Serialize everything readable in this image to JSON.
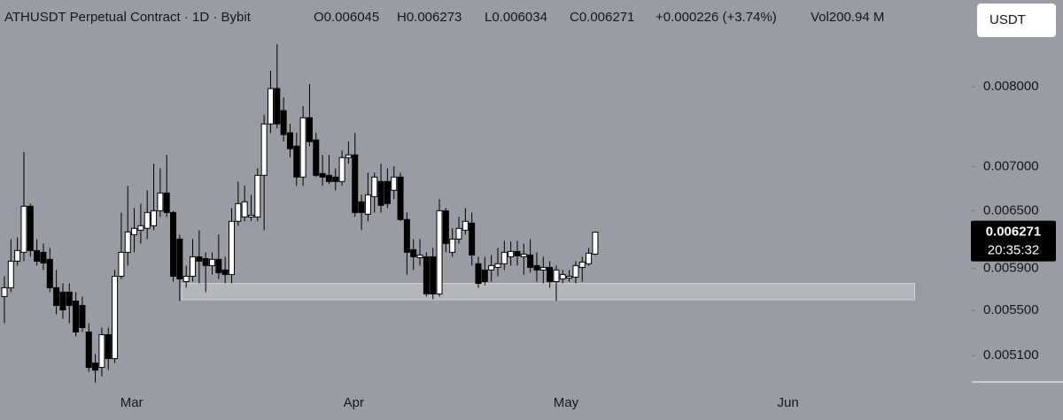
{
  "chart_data": {
    "type": "candlestick",
    "title": "ATHUSDT Perpetual Contract · 1D · Bybit",
    "ohlc_info": [
      "O0.006045",
      "H0.006273",
      "L0.006034",
      "C0.006271",
      "+0.000226 (+3.74%)",
      "Vol200.94 M"
    ],
    "currency": "USDT",
    "price_label": "0.006271",
    "countdown": "20:35:32",
    "log_scale": true,
    "up_color": "#ffffff",
    "down_color": "#000000",
    "background": "#9a9ca3",
    "ylim": [
      0.00488,
      0.00925
    ],
    "yticks": [
      {
        "value": 0.008,
        "label": "0.008000"
      },
      {
        "value": 0.007,
        "label": "0.007000"
      },
      {
        "value": 0.0065,
        "label": "0.006500"
      },
      {
        "value": 0.0059,
        "label": "0.005900"
      },
      {
        "value": 0.0055,
        "label": "0.005500"
      },
      {
        "value": 0.0051,
        "label": "0.005100"
      }
    ],
    "xlim": [
      -0.68,
      149
    ],
    "xticks": [
      {
        "value": 19.6,
        "label": "Mar"
      },
      {
        "value": 53.8,
        "label": "Apr"
      },
      {
        "value": 86.5,
        "label": "May"
      },
      {
        "value": 120.7,
        "label": "Jun"
      }
    ],
    "zone": {
      "low": 0.0056,
      "high": 0.005755,
      "x0": 27.3,
      "x1": 140.2
    },
    "open": [
      0.00563,
      0.005714,
      0.005974,
      0.006063,
      0.006549,
      0.006081,
      0.006063,
      0.005992,
      0.005714,
      0.005672,
      0.005672,
      0.005588,
      0.005547,
      0.005306,
      0.005037,
      0.005,
      0.005282,
      0.005075,
      0.005825,
      0.006063,
      0.006245,
      0.006292,
      0.006311,
      0.006339,
      0.0065,
      0.006696,
      0.006481,
      0.006199,
      0.005773,
      0.005825,
      0.006018,
      0.006,
      0.00593,
      0.005992,
      0.005886,
      0.005842,
      0.006386,
      0.006433,
      0.006433,
      0.006433,
      0.006897,
      0.007517,
      0.007976,
      0.007686,
      0.007406,
      0.007243,
      0.006877,
      0.007595,
      0.007318,
      0.006918,
      0.006897,
      0.006877,
      0.006826,
      0.007105,
      0.007137,
      0.006598,
      0.006462,
      0.006656,
      0.006826,
      0.006826,
      0.006726,
      0.006877,
      0.006405,
      0.00609,
      0.006009,
      0.006018,
      0.006018,
      0.005655,
      0.0065,
      0.006063,
      0.006199,
      0.006292,
      0.006367,
      0.005948,
      0.005886,
      0.005886,
      0.005912,
      0.005948,
      0.006018,
      0.006072,
      0.006018,
      0.006036,
      0.00593,
      0.005886,
      0.005912,
      0.005773,
      0.005799,
      0.005808,
      0.005816,
      0.005912,
      0.005948,
      0.006045
    ],
    "high": [
      0.005825,
      0.006199,
      0.006217,
      0.007169,
      0.006578,
      0.006199,
      0.006153,
      0.006108,
      0.005886,
      0.005756,
      0.005756,
      0.005672,
      0.00563,
      0.005385,
      0.005113,
      0.005345,
      0.005345,
      0.005886,
      0.006481,
      0.006776,
      0.006529,
      0.006578,
      0.006726,
      0.007032,
      0.00698,
      0.007137,
      0.0065,
      0.006245,
      0.00593,
      0.006199,
      0.006292,
      0.006063,
      0.006063,
      0.006245,
      0.006018,
      0.006529,
      0.006826,
      0.006776,
      0.006676,
      0.00698,
      0.007629,
      0.008216,
      0.00859,
      0.007859,
      0.007517,
      0.007406,
      0.007743,
      0.008036,
      0.007406,
      0.007137,
      0.007137,
      0.00698,
      0.00719,
      0.007297,
      0.007406,
      0.006676,
      0.006928,
      0.006928,
      0.007032,
      0.00698,
      0.007001,
      0.006928,
      0.006481,
      0.006199,
      0.006199,
      0.006063,
      0.006108,
      0.006627,
      0.006529,
      0.006311,
      0.006433,
      0.006529,
      0.006481,
      0.006018,
      0.006018,
      0.006036,
      0.006108,
      0.006181,
      0.006172,
      0.006181,
      0.006153,
      0.006199,
      0.006063,
      0.006018,
      0.005974,
      0.00593,
      0.005886,
      0.005886,
      0.005974,
      0.006018,
      0.006108,
      0.006273
    ],
    "low": [
      0.005385,
      0.005672,
      0.00593,
      0.005974,
      0.006018,
      0.00593,
      0.005886,
      0.005672,
      0.005466,
      0.005425,
      0.005385,
      0.005267,
      0.005306,
      0.004963,
      0.004875,
      0.004926,
      0.004978,
      0.005037,
      0.005799,
      0.00593,
      0.006063,
      0.006153,
      0.006199,
      0.006292,
      0.006433,
      0.006433,
      0.005773,
      0.005588,
      0.005714,
      0.005773,
      0.005756,
      0.005672,
      0.005842,
      0.005799,
      0.005756,
      0.005756,
      0.006339,
      0.006386,
      0.006386,
      0.006386,
      0.006292,
      0.007406,
      0.007461,
      0.007297,
      0.007105,
      0.006776,
      0.006776,
      0.007243,
      0.006877,
      0.006776,
      0.006796,
      0.006726,
      0.006776,
      0.007032,
      0.006433,
      0.006292,
      0.006386,
      0.006481,
      0.006481,
      0.006529,
      0.006627,
      0.006386,
      0.005842,
      0.005886,
      0.00593,
      0.00563,
      0.005605,
      0.00563,
      0.006063,
      0.006018,
      0.006153,
      0.006245,
      0.00593,
      0.005714,
      0.005739,
      0.005773,
      0.005825,
      0.005886,
      0.00593,
      0.00593,
      0.005842,
      0.00586,
      0.005773,
      0.005756,
      0.005714,
      0.005588,
      0.005756,
      0.005773,
      0.005756,
      0.005773,
      0.00593,
      0.006034
    ],
    "close": [
      0.005714,
      0.005974,
      0.006081,
      0.006549,
      0.006081,
      0.005974,
      0.005956,
      0.005714,
      0.005547,
      0.005506,
      0.005547,
      0.005306,
      0.005345,
      0.005,
      0.004978,
      0.005282,
      0.005075,
      0.005825,
      0.006063,
      0.006274,
      0.006311,
      0.006339,
      0.006481,
      0.0065,
      0.006696,
      0.006481,
      0.005825,
      0.005799,
      0.005825,
      0.006018,
      0.005974,
      0.00593,
      0.005992,
      0.00586,
      0.005842,
      0.006386,
      0.006578,
      0.006598,
      0.006452,
      0.006897,
      0.007517,
      0.007976,
      0.007517,
      0.007384,
      0.007211,
      0.006877,
      0.007595,
      0.007297,
      0.006897,
      0.006877,
      0.006826,
      0.006826,
      0.007105,
      0.007137,
      0.006481,
      0.006481,
      0.006676,
      0.006877,
      0.006559,
      0.006578,
      0.006877,
      0.006405,
      0.006063,
      0.006018,
      0.006036,
      0.005655,
      0.005655,
      0.0065,
      0.006153,
      0.006199,
      0.006311,
      0.006386,
      0.006036,
      0.005756,
      0.005773,
      0.00593,
      0.005948,
      0.006063,
      0.006072,
      0.006027,
      0.006045,
      0.005912,
      0.005886,
      0.005912,
      0.005773,
      0.005886,
      0.005842,
      0.005825,
      0.00593,
      0.005965,
      0.006054,
      0.006271
    ]
  }
}
